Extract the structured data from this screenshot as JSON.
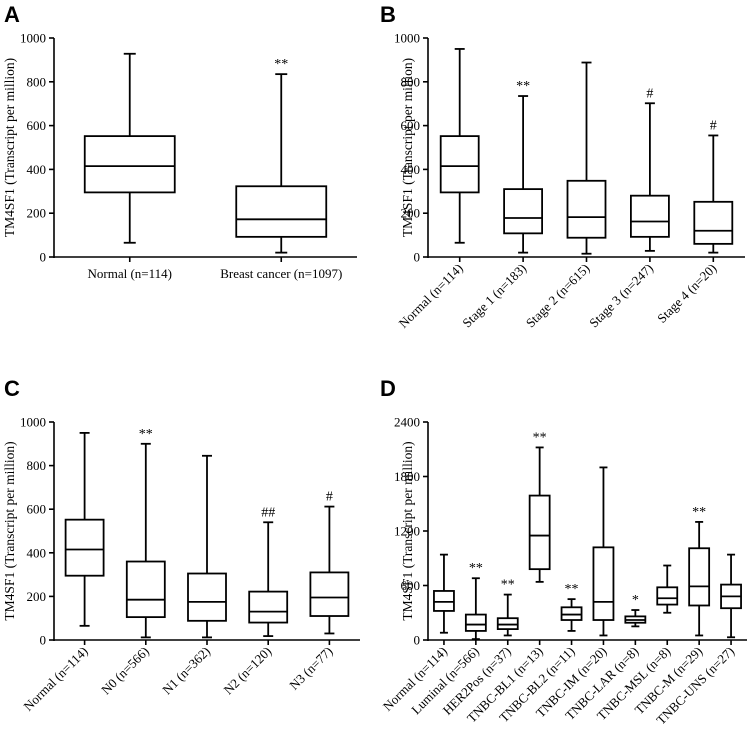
{
  "panel_labels": [
    "A",
    "B",
    "C",
    "D"
  ],
  "colors": {
    "stroke": "#000000",
    "fill": "#ffffff"
  },
  "chart_data": [
    {
      "type": "boxplot",
      "panel": "A",
      "ylabel": "TM4SF1 (Transcript per million)",
      "ylim": [
        0,
        1000
      ],
      "yticks": [
        0,
        200,
        400,
        600,
        800,
        1000
      ],
      "categories": [
        "Normal (n=114)",
        "Breast cancer (n=1097)"
      ],
      "label_rotation": 0,
      "series": [
        {
          "name": "Normal (n=114)",
          "min": 65,
          "q1": 295,
          "median": 415,
          "q3": 552,
          "max": 928,
          "annotation": ""
        },
        {
          "name": "Breast cancer (n=1097)",
          "min": 20,
          "q1": 92,
          "median": 172,
          "q3": 323,
          "max": 835,
          "annotation": "**"
        }
      ]
    },
    {
      "type": "boxplot",
      "panel": "B",
      "ylabel": "TM4SF1 (Transcript per million)",
      "ylim": [
        0,
        1000
      ],
      "yticks": [
        0,
        200,
        400,
        600,
        800,
        1000
      ],
      "categories": [
        "Normal (n=114)",
        "Stage 1 (n=183)",
        "Stage 2 (n=615)",
        "Stage 3 (n=247)",
        "Stage 4 (n=20)"
      ],
      "label_rotation": -45,
      "series": [
        {
          "name": "Normal (n=114)",
          "min": 65,
          "q1": 295,
          "median": 415,
          "q3": 552,
          "max": 950,
          "annotation": ""
        },
        {
          "name": "Stage 1 (n=183)",
          "min": 20,
          "q1": 108,
          "median": 178,
          "q3": 310,
          "max": 735,
          "annotation": "**"
        },
        {
          "name": "Stage 2 (n=615)",
          "min": 15,
          "q1": 88,
          "median": 182,
          "q3": 348,
          "max": 888,
          "annotation": ""
        },
        {
          "name": "Stage 3 (n=247)",
          "min": 28,
          "q1": 92,
          "median": 162,
          "q3": 280,
          "max": 702,
          "annotation": "#"
        },
        {
          "name": "Stage 4 (n=20)",
          "min": 20,
          "q1": 60,
          "median": 120,
          "q3": 252,
          "max": 555,
          "annotation": "#"
        }
      ]
    },
    {
      "type": "boxplot",
      "panel": "C",
      "ylabel": "TM4SF1 (Transcript per million)",
      "ylim": [
        0,
        1000
      ],
      "yticks": [
        0,
        200,
        400,
        600,
        800,
        1000
      ],
      "categories": [
        "Normal (n=114)",
        "N0 (n=566)",
        "N1 (n=362)",
        "N2 (n=120)",
        "N3 (n=77)"
      ],
      "label_rotation": -45,
      "series": [
        {
          "name": "Normal (n=114)",
          "min": 65,
          "q1": 295,
          "median": 415,
          "q3": 552,
          "max": 950,
          "annotation": ""
        },
        {
          "name": "N0 (n=566)",
          "min": 12,
          "q1": 105,
          "median": 185,
          "q3": 360,
          "max": 900,
          "annotation": "**"
        },
        {
          "name": "N1 (n=362)",
          "min": 12,
          "q1": 88,
          "median": 175,
          "q3": 305,
          "max": 845,
          "annotation": ""
        },
        {
          "name": "N2 (n=120)",
          "min": 18,
          "q1": 80,
          "median": 130,
          "q3": 222,
          "max": 540,
          "annotation": "##"
        },
        {
          "name": "N3 (n=77)",
          "min": 30,
          "q1": 110,
          "median": 195,
          "q3": 310,
          "max": 612,
          "annotation": "#"
        }
      ]
    },
    {
      "type": "boxplot",
      "panel": "D",
      "ylabel": "TM4SF1 (Transcript per million)",
      "ylim": [
        0,
        2400
      ],
      "yticks": [
        0,
        600,
        1200,
        1800,
        2400
      ],
      "categories": [
        "Normal (n=114)",
        "Luminal (n=566)",
        "HER2Pos (n=37)",
        "TNBC-BL1 (n=13)",
        "TNBC-BL2 (n=11)",
        "TNBC-IM (n=20)",
        "TNBC-LAR (n=8)",
        "TNBC-MSL (n=8)",
        "TNBC-M (n=29)",
        "TNBC-UNS (n=27)"
      ],
      "label_rotation": -45,
      "series": [
        {
          "name": "Normal (n=114)",
          "min": 80,
          "q1": 320,
          "median": 420,
          "q3": 540,
          "max": 940,
          "annotation": ""
        },
        {
          "name": "Luminal (n=566)",
          "min": 10,
          "q1": 100,
          "median": 170,
          "q3": 280,
          "max": 680,
          "annotation": "**"
        },
        {
          "name": "HER2Pos (n=37)",
          "min": 50,
          "q1": 120,
          "median": 170,
          "q3": 240,
          "max": 500,
          "annotation": "**"
        },
        {
          "name": "TNBC-BL1 (n=13)",
          "min": 640,
          "q1": 780,
          "median": 1150,
          "q3": 1590,
          "max": 2120,
          "annotation": "**"
        },
        {
          "name": "TNBC-BL2 (n=11)",
          "min": 100,
          "q1": 220,
          "median": 280,
          "q3": 360,
          "max": 450,
          "annotation": "**"
        },
        {
          "name": "TNBC-IM (n=20)",
          "min": 50,
          "q1": 220,
          "median": 420,
          "q3": 1020,
          "max": 1900,
          "annotation": ""
        },
        {
          "name": "TNBC-LAR (n=8)",
          "min": 150,
          "q1": 190,
          "median": 220,
          "q3": 260,
          "max": 330,
          "annotation": "*"
        },
        {
          "name": "TNBC-MSL (n=8)",
          "min": 300,
          "q1": 390,
          "median": 460,
          "q3": 580,
          "max": 820,
          "annotation": ""
        },
        {
          "name": "TNBC-M (n=29)",
          "min": 50,
          "q1": 380,
          "median": 590,
          "q3": 1010,
          "max": 1300,
          "annotation": "**"
        },
        {
          "name": "TNBC-UNS (n=27)",
          "min": 30,
          "q1": 350,
          "median": 480,
          "q3": 610,
          "max": 940,
          "annotation": ""
        }
      ]
    }
  ]
}
